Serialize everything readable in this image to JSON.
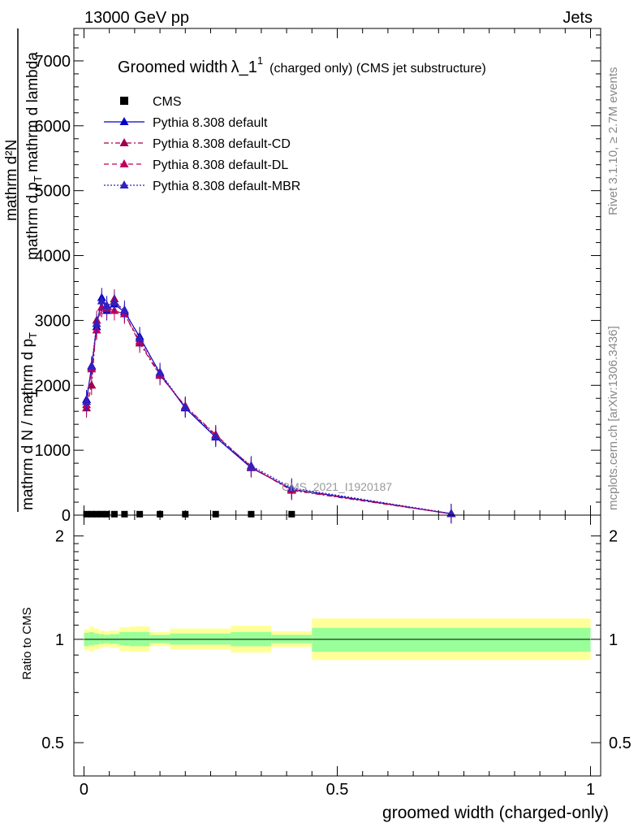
{
  "header": {
    "left": "13000 GeV pp",
    "right": "Jets"
  },
  "side_labels": {
    "rivet": "Rivet 3.1.10, ≥ 2.7M events",
    "mcplots": "mcplots.cern.ch [arXiv:1306.3436]"
  },
  "watermark": "CMS_2021_I1920187",
  "chart_data": [
    {
      "type": "line",
      "title_main": "Groomed width",
      "title_lambda": "λ_1",
      "title_sup": "1",
      "title_note": "(charged only) (CMS jet substructure)",
      "xlabel": "groomed width (charged-only)",
      "ylabel_num": "mathrm d²N",
      "ylabel_num_parts": [
        "mathrm d",
        "N"
      ],
      "ylabel_num_sup": "2",
      "ylabel_num_rest": "mathrm d p",
      "ylabel_frac_left": "1",
      "ylabel_den": "mathrm d N / mathrm d p",
      "ylabel_den_sub": "T",
      "ylabel_num_end": "mathrm d lambda",
      "ylabel_text_num": "mathrm d²N",
      "ylabel_text_top": "mathrm d p",
      "ylabel_text_sub": "T",
      "ylabel_text_lambda": "mathrm d lambda",
      "ylabel_text_den": "mathrm d N / mathrm d p",
      "ylabel_text_den_sub": "T",
      "xlim": [
        -0.02,
        1.02
      ],
      "ylim": [
        0,
        7500
      ],
      "yticks": [
        0,
        1000,
        2000,
        3000,
        4000,
        5000,
        6000,
        7000
      ],
      "ytick_labels": [
        "0",
        "1000",
        "2000",
        "3000",
        "4000",
        "5000",
        "6000",
        "7000"
      ],
      "legend_position": "top-left",
      "series": [
        {
          "name": "CMS",
          "style": "marker-square",
          "color": "#000000",
          "x": [
            0.005,
            0.015,
            0.025,
            0.035,
            0.045,
            0.06,
            0.08,
            0.11,
            0.15,
            0.2,
            0.26,
            0.33,
            0.41
          ],
          "y": [
            15,
            15,
            15,
            15,
            15,
            15,
            15,
            15,
            15,
            15,
            15,
            15,
            15
          ]
        },
        {
          "name": "Pythia 8.308 default",
          "style": "solid",
          "color": "#0000cc",
          "x": [
            0.005,
            0.015,
            0.025,
            0.035,
            0.045,
            0.06,
            0.08,
            0.11,
            0.15,
            0.2,
            0.26,
            0.33,
            0.41,
            0.725
          ],
          "y": [
            1780,
            2280,
            2900,
            3350,
            3150,
            3250,
            3130,
            2750,
            2180,
            1650,
            1200,
            730,
            400,
            20
          ]
        },
        {
          "name": "Pythia 8.308 default-CD",
          "style": "dashdot",
          "color": "#a0004c",
          "x": [
            0.005,
            0.015,
            0.025,
            0.035,
            0.045,
            0.06,
            0.08,
            0.11,
            0.15,
            0.2,
            0.26,
            0.33,
            0.41,
            0.725
          ],
          "y": [
            1650,
            2000,
            3000,
            3200,
            3180,
            3330,
            3100,
            2650,
            2150,
            1680,
            1240,
            740,
            380,
            20
          ]
        },
        {
          "name": "Pythia 8.308 default-DL",
          "style": "dashed",
          "color": "#c0005a",
          "x": [
            0.005,
            0.015,
            0.025,
            0.035,
            0.045,
            0.06,
            0.08,
            0.11,
            0.15,
            0.2,
            0.26,
            0.33,
            0.41,
            0.725
          ],
          "y": [
            1700,
            2250,
            2850,
            3200,
            3200,
            3150,
            3100,
            2680,
            2160,
            1670,
            1230,
            745,
            390,
            20
          ]
        },
        {
          "name": "Pythia 8.308 default-MBR",
          "style": "dotted",
          "color": "#3020c0",
          "x": [
            0.005,
            0.015,
            0.025,
            0.035,
            0.045,
            0.06,
            0.08,
            0.11,
            0.15,
            0.2,
            0.26,
            0.33,
            0.41,
            0.725
          ],
          "y": [
            1750,
            2300,
            2950,
            3300,
            3230,
            3280,
            3160,
            2720,
            2200,
            1660,
            1210,
            760,
            420,
            25
          ]
        }
      ]
    },
    {
      "type": "area",
      "ylabel": "Ratio to CMS",
      "xlim": [
        -0.02,
        1.02
      ],
      "ylim": [
        0.4,
        2.3
      ],
      "log_y": true,
      "yticks": [
        0.5,
        1,
        2
      ],
      "ytick_labels": [
        "0.5",
        "1",
        "2"
      ],
      "xticks": [
        0,
        0.5,
        1
      ],
      "xtick_labels": [
        "0",
        "0.5",
        "1"
      ],
      "reference_line": 1,
      "band_colors": {
        "inner": "#99ff99",
        "outer": "#ffff99"
      },
      "bins": [
        {
          "x0": 0.0,
          "x1": 0.01,
          "inner": [
            0.955,
            1.045
          ],
          "outer": [
            0.93,
            1.07
          ]
        },
        {
          "x0": 0.01,
          "x1": 0.02,
          "inner": [
            0.96,
            1.05
          ],
          "outer": [
            0.92,
            1.09
          ]
        },
        {
          "x0": 0.02,
          "x1": 0.03,
          "inner": [
            0.965,
            1.04
          ],
          "outer": [
            0.935,
            1.075
          ]
        },
        {
          "x0": 0.03,
          "x1": 0.04,
          "inner": [
            0.97,
            1.035
          ],
          "outer": [
            0.945,
            1.06
          ]
        },
        {
          "x0": 0.04,
          "x1": 0.05,
          "inner": [
            0.975,
            1.03
          ],
          "outer": [
            0.95,
            1.055
          ]
        },
        {
          "x0": 0.05,
          "x1": 0.07,
          "inner": [
            0.97,
            1.035
          ],
          "outer": [
            0.945,
            1.06
          ]
        },
        {
          "x0": 0.07,
          "x1": 0.09,
          "inner": [
            0.96,
            1.05
          ],
          "outer": [
            0.925,
            1.085
          ]
        },
        {
          "x0": 0.09,
          "x1": 0.13,
          "inner": [
            0.955,
            1.05
          ],
          "outer": [
            0.92,
            1.09
          ]
        },
        {
          "x0": 0.13,
          "x1": 0.17,
          "inner": [
            0.975,
            1.03
          ],
          "outer": [
            0.955,
            1.05
          ]
        },
        {
          "x0": 0.17,
          "x1": 0.23,
          "inner": [
            0.965,
            1.04
          ],
          "outer": [
            0.935,
            1.075
          ]
        },
        {
          "x0": 0.23,
          "x1": 0.29,
          "inner": [
            0.965,
            1.04
          ],
          "outer": [
            0.935,
            1.075
          ]
        },
        {
          "x0": 0.29,
          "x1": 0.37,
          "inner": [
            0.955,
            1.05
          ],
          "outer": [
            0.915,
            1.095
          ]
        },
        {
          "x0": 0.37,
          "x1": 0.45,
          "inner": [
            0.975,
            1.03
          ],
          "outer": [
            0.95,
            1.055
          ]
        },
        {
          "x0": 0.45,
          "x1": 1.0,
          "inner": [
            0.92,
            1.08
          ],
          "outer": [
            0.87,
            1.15
          ]
        }
      ]
    }
  ]
}
